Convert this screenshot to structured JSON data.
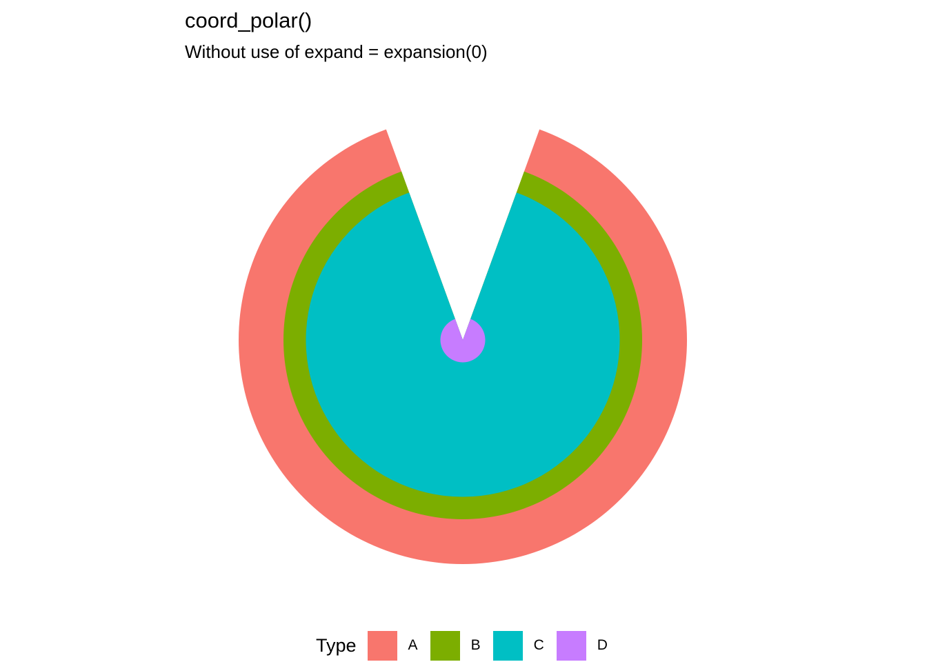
{
  "chart_data": {
    "type": "polar-bar",
    "title": "coord_polar()",
    "subtitle": "Without use of expand = expansion(0)",
    "legend_title": "Type",
    "legend_position": "bottom",
    "grid": false,
    "theta_range_deg": [
      20,
      340
    ],
    "categories": [
      "A",
      "B",
      "C",
      "D"
    ],
    "values": [
      5,
      4,
      3.5,
      0.5
    ],
    "colors": [
      "#F8766D",
      "#7CAE00",
      "#00BFC4",
      "#C77CFF"
    ]
  }
}
